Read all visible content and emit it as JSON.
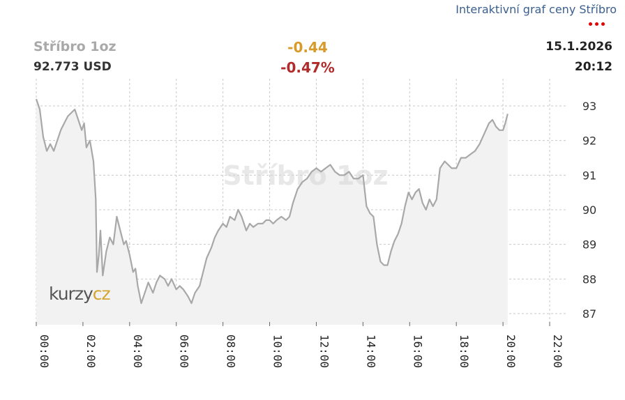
{
  "header": {
    "link_label": "Interaktivní graf ceny Stříbro",
    "instrument": "Stříbro 1oz",
    "price": "92.773 USD",
    "change_abs": "-0.44",
    "change_pct": "-0.47%",
    "date": "15.1.2026",
    "time": "20:12"
  },
  "watermark": "Stříbro 1oz",
  "logo": {
    "part1": "kurzy",
    "part2": "cz"
  },
  "colors": {
    "line": "#a8a8a8",
    "area": "#f2f2f2",
    "grid": "#c8c8c8",
    "positive_accent": "#d89b2a",
    "negative": "#b22b2b",
    "menu_dots": "#e00000"
  },
  "chart_data": {
    "type": "area",
    "title": "",
    "xlabel": "",
    "ylabel": "",
    "x_unit": "hours",
    "xlim": [
      0,
      22
    ],
    "ylim": [
      86.8,
      93.3
    ],
    "grid": true,
    "y_axis_side": "right",
    "x_ticks": [
      {
        "value": 0,
        "label": "00:00"
      },
      {
        "value": 2,
        "label": "02:00"
      },
      {
        "value": 4,
        "label": "04:00"
      },
      {
        "value": 6,
        "label": "06:00"
      },
      {
        "value": 8,
        "label": "08:00"
      },
      {
        "value": 10,
        "label": "10:00"
      },
      {
        "value": 12,
        "label": "12:00"
      },
      {
        "value": 14,
        "label": "14:00"
      },
      {
        "value": 16,
        "label": "16:00"
      },
      {
        "value": 18,
        "label": "18:00"
      },
      {
        "value": 20,
        "label": "20:00"
      },
      {
        "value": 22,
        "label": "22:00"
      }
    ],
    "y_ticks": [
      87,
      88,
      89,
      90,
      91,
      92,
      93
    ],
    "series": [
      {
        "x": [
          0.0,
          0.15,
          0.3,
          0.45,
          0.6,
          0.75,
          0.9,
          1.05,
          1.2,
          1.35,
          1.5,
          1.65,
          1.8,
          1.95,
          2.05,
          2.15,
          2.3,
          2.45,
          2.55,
          2.6,
          2.68,
          2.75,
          2.85,
          3.0,
          3.15,
          3.3,
          3.45,
          3.6,
          3.75,
          3.85,
          4.0,
          4.15,
          4.25,
          4.35,
          4.5,
          4.65,
          4.8,
          5.0,
          5.15,
          5.3,
          5.5,
          5.65,
          5.8,
          6.0,
          6.15,
          6.3,
          6.5,
          6.65,
          6.8,
          7.0,
          7.15,
          7.3,
          7.5,
          7.65,
          7.8,
          8.0,
          8.15,
          8.3,
          8.5,
          8.65,
          8.8,
          9.0,
          9.15,
          9.3,
          9.5,
          9.7,
          9.85,
          10.0,
          10.15,
          10.3,
          10.5,
          10.7,
          10.85,
          11.0,
          11.2,
          11.4,
          11.6,
          11.8,
          12.0,
          12.2,
          12.4,
          12.6,
          12.8,
          13.0,
          13.2,
          13.4,
          13.6,
          13.8,
          14.0,
          14.15,
          14.3,
          14.45,
          14.6,
          14.75,
          14.9,
          15.05,
          15.2,
          15.35,
          15.5,
          15.65,
          15.8,
          15.95,
          16.1,
          16.25,
          16.4,
          16.55,
          16.7,
          16.85,
          17.0,
          17.15,
          17.3,
          17.5,
          17.65,
          17.8,
          18.0,
          18.2,
          18.4,
          18.6,
          18.8,
          19.0,
          19.2,
          19.4,
          19.55,
          19.7,
          19.85,
          20.0,
          20.1,
          20.2
        ],
        "values": [
          93.2,
          92.9,
          92.1,
          91.7,
          91.9,
          91.7,
          92.0,
          92.3,
          92.5,
          92.7,
          92.8,
          92.9,
          92.6,
          92.3,
          92.5,
          91.8,
          92.0,
          91.4,
          90.3,
          88.2,
          88.7,
          89.4,
          88.1,
          88.8,
          89.2,
          89.0,
          89.8,
          89.4,
          89.0,
          89.1,
          88.7,
          88.2,
          88.3,
          87.8,
          87.3,
          87.6,
          87.9,
          87.6,
          87.9,
          88.1,
          88.0,
          87.8,
          88.0,
          87.7,
          87.8,
          87.7,
          87.5,
          87.3,
          87.6,
          87.8,
          88.2,
          88.6,
          88.9,
          89.2,
          89.4,
          89.6,
          89.5,
          89.8,
          89.7,
          90.0,
          89.8,
          89.4,
          89.6,
          89.5,
          89.6,
          89.6,
          89.7,
          89.7,
          89.6,
          89.7,
          89.8,
          89.7,
          89.8,
          90.2,
          90.6,
          90.8,
          90.9,
          91.1,
          91.2,
          91.1,
          91.2,
          91.3,
          91.1,
          91.0,
          91.0,
          91.1,
          90.9,
          90.9,
          91.0,
          90.1,
          89.9,
          89.8,
          89.0,
          88.5,
          88.4,
          88.4,
          88.8,
          89.1,
          89.3,
          89.6,
          90.1,
          90.5,
          90.3,
          90.5,
          90.6,
          90.2,
          90.0,
          90.3,
          90.1,
          90.3,
          91.2,
          91.4,
          91.3,
          91.2,
          91.2,
          91.5,
          91.5,
          91.6,
          91.7,
          91.9,
          92.2,
          92.5,
          92.6,
          92.4,
          92.3,
          92.3,
          92.5,
          92.77
        ]
      }
    ]
  }
}
